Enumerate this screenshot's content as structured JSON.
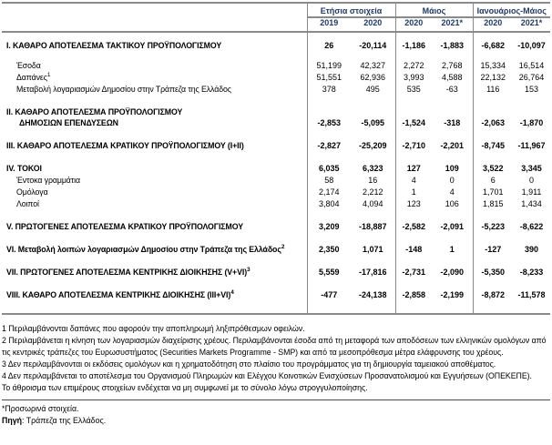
{
  "table": {
    "col_groups": [
      {
        "label": "Ετήσια στοιχεία",
        "years": [
          "2019",
          "2020"
        ]
      },
      {
        "label": "Μάιος",
        "years": [
          "2020",
          "2021*"
        ]
      },
      {
        "label": "Ιανουάριος-Μάιος",
        "years": [
          "2020",
          "2021*"
        ]
      }
    ],
    "rows": [
      {
        "kind": "section",
        "label": "I. ΚΑΘΑΡΟ ΑΠΟΤΕΛΕΣΜΑ  ΤΑΚΤΙΚΟΥ ΠΡΟΫΠΟΛΟΓΙΣΜΟΥ",
        "values": [
          "26",
          "-20,114",
          "-1,186",
          "-1,883",
          "-6,682",
          "-10,097"
        ]
      },
      {
        "kind": "sub-first",
        "label": "Έσοδα",
        "values": [
          "51,199",
          "42,327",
          "2,272",
          "2,768",
          "15,334",
          "16,514"
        ]
      },
      {
        "kind": "sub",
        "label": "Δαπάνες",
        "sup": "1",
        "values": [
          "51,551",
          "62,936",
          "3,993",
          "4,588",
          "22,132",
          "26,764"
        ]
      },
      {
        "kind": "sub",
        "label": "Μεταβολή λογαριασμών Δημοσίου στην Τράπεζα της Ελλάδος",
        "values": [
          "378",
          "495",
          "535",
          "-63",
          "116",
          "153"
        ]
      },
      {
        "kind": "section2",
        "label": "II. ΚΑΘΑΡΟ ΑΠΟΤΕΛΕΣΜΑ ΠΡΟΫΠΟΛΟΓΙΣΜΟΥ",
        "label2": "ΔΗΜΟΣΙΩΝ ΕΠΕΝΔΥΣΕΩΝ",
        "values": [
          "-2,853",
          "-5,095",
          "-1,524",
          "-318",
          "-2,063",
          "-1,870"
        ]
      },
      {
        "kind": "section",
        "label": "III. ΚΑΘΑΡΟ ΑΠΟΤΕΛΕΣΜΑ ΚΡΑΤΙΚΟΥ ΠΡΟΫΠΟΛΟΓΙΣΜΟΥ (I+II)",
        "values": [
          "-2,827",
          "-25,209",
          "-2,710",
          "-2,201",
          "-8,745",
          "-11,967"
        ]
      },
      {
        "kind": "section",
        "label": "IV. ΤΟΚΟΙ",
        "values": [
          "6,035",
          "6,323",
          "127",
          "109",
          "3,522",
          "3,345"
        ]
      },
      {
        "kind": "sub",
        "label": "Έντοκα γραμμάτια",
        "values": [
          "58",
          "16",
          "4",
          "0",
          "6",
          "0"
        ]
      },
      {
        "kind": "sub",
        "label": "Ομόλογα",
        "values": [
          "2,174",
          "2,212",
          "1",
          "4",
          "1,701",
          "1,911"
        ]
      },
      {
        "kind": "sub",
        "label": "Λοιποί",
        "values": [
          "3,804",
          "4,094",
          "123",
          "106",
          "1,815",
          "1,434"
        ]
      },
      {
        "kind": "section",
        "label": "V. ΠΡΩΤΟΓΕΝΕΣ ΑΠΟΤΕΛΕΣΜΑ  ΚΡΑΤΙΚΟΥ ΠΡΟΫΠΟΛΟΓΙΣΜΟΥ",
        "values": [
          "3,209",
          "-18,887",
          "-2,582",
          "-2,091",
          "-5,223",
          "-8,622"
        ]
      },
      {
        "kind": "section",
        "label": "VI. Μεταβολή λοιπών λογαριασμών Δημοσίου στην Τράπεζα της Ελλάδος",
        "sup": "2",
        "values": [
          "2,350",
          "1,071",
          "-148",
          "1",
          "-127",
          "390"
        ]
      },
      {
        "kind": "section",
        "label": "VII. ΠΡΩΤΟΓΕΝΕΣ ΑΠΟΤΕΛΕΣΜΑ ΚΕΝΤΡΙΚΗΣ ΔΙΟΙΚΗΣΗΣ (V+VI)",
        "sup": "3",
        "values": [
          "5,559",
          "-17,816",
          "-2,731",
          "-2,090",
          "-5,350",
          "-8,233"
        ]
      },
      {
        "kind": "section",
        "label": "VIII. ΚΑΘΑΡΟ ΑΠΟΤΕΛΕΣΜΑ ΚΕΝΤΡΙΚΗΣ ΔΙΟΙΚΗΣΗΣ (III+VI)",
        "sup": "4",
        "values": [
          "-477",
          "-24,138",
          "-2,858",
          "-2,199",
          "-8,872",
          "-11,578"
        ]
      }
    ]
  },
  "footnotes": [
    "1 Περιλαμβάνονται δαπάνες που αφορούν την αποπληρωμή ληξιπρόθεσμων οφειλών.",
    "2 Περιλαμβάνεται η κίνηση των λογαριασμών διαχείρισης χρέους. Περιλαμβάνονται έσοδα από τη μεταφορά των αποδόσεων των ελληνικών ομολόγων από τις κεντρικές τράπεζες του Ευρωσυστήματος (Securities Markets Programme - SMP) και από τα μεσοπρόθεσμα μέτρα ελάφρυνσης του χρέους.",
    "3 Δεν περιλαμβάνονται οι εκδόσεις ομολόγων και η χρηματοδότηση στο πλαίσιο του προγράμματος για τη δημιουργία ταμειακού αποθέματος.",
    "4 Δεν περιλαμβάνεται το αποτέλεσμα του Οργανισμού Πληρωμών και Ελέγχου Κοινοτικών Ενισχύσεων Προσανατολισμού και Εγγυήσεων (ΟΠΕΚΕΠΕ).",
    "Το άθροισμα των επιμέρους στοιχείων ενδέχεται να μη συμφωνεί με το σύνολο λόγω στρογγυλοποίησης."
  ],
  "notes": {
    "provisional": "*Προσωρινά στοιχεία.",
    "source_label": "Πηγή",
    "source_text": ": Τράπεζα της Ελλάδος."
  },
  "colors": {
    "header_text": "#1e3a68",
    "rule": "#8a8a8a",
    "body_text": "#000000"
  }
}
